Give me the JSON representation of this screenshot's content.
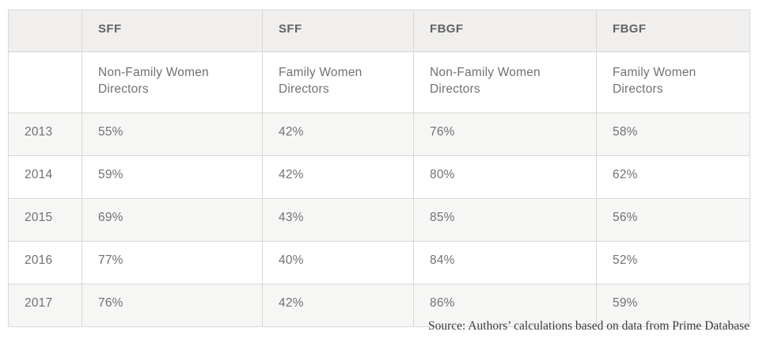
{
  "table": {
    "group_headers": [
      "",
      "SFF",
      "SFF",
      "FBGF",
      "FBGF"
    ],
    "sub_headers": [
      "",
      "Non-Family Women Directors",
      "Family Women Directors",
      "Non-Family Women Directors",
      "Family Women Directors"
    ],
    "rows": [
      {
        "year": "2013",
        "values": [
          "55%",
          "42%",
          "76%",
          "58%"
        ]
      },
      {
        "year": "2014",
        "values": [
          "59%",
          "42%",
          "80%",
          "62%"
        ]
      },
      {
        "year": "2015",
        "values": [
          "69%",
          "43%",
          "85%",
          "56%"
        ]
      },
      {
        "year": "2016",
        "values": [
          "77%",
          "40%",
          "84%",
          "52%"
        ]
      },
      {
        "year": "2017",
        "values": [
          "76%",
          "42%",
          "86%",
          "59%"
        ]
      }
    ]
  },
  "source": "Source: Authors’ calculations based on data from Prime Database",
  "colors": {
    "header_background": "#f0efed",
    "stripe_background": "#f6f6f5",
    "border": "#d9d8d6",
    "header_text": "#626366",
    "body_text": "#707175",
    "source_text": "#3b3b3b"
  },
  "chart_data": {
    "type": "table",
    "title": "",
    "columns": [
      "Year",
      "SFF Non-Family Women Directors",
      "SFF Family Women Directors",
      "FBGF Non-Family Women Directors",
      "FBGF Family Women Directors"
    ],
    "column_groups": [
      "",
      "SFF",
      "SFF",
      "FBGF",
      "FBGF"
    ],
    "unit": "%",
    "rows": [
      [
        2013,
        55,
        42,
        76,
        58
      ],
      [
        2014,
        59,
        42,
        80,
        62
      ],
      [
        2015,
        69,
        43,
        85,
        56
      ],
      [
        2016,
        77,
        40,
        84,
        52
      ],
      [
        2017,
        76,
        42,
        86,
        59
      ]
    ],
    "source": "Source: Authors’ calculations based on data from Prime Database"
  }
}
